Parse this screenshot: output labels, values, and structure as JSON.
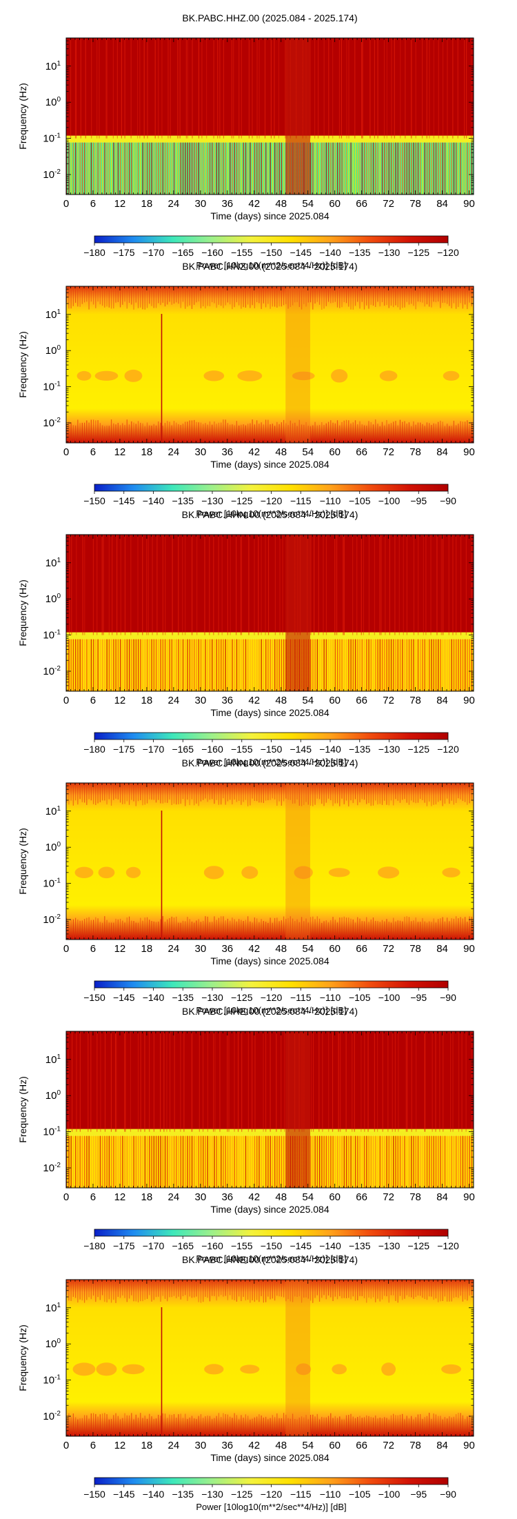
{
  "chart_data": [
    {
      "type": "heatmap",
      "title": "BK.PABC.HHZ.00 (2025.084 - 2025.174)",
      "xlabel": "Time (days) since 2025.084",
      "ylabel": "Frequency (Hz)",
      "xlim": [
        0,
        91
      ],
      "ylim": [
        0.0028,
        60
      ],
      "y_scale": "log",
      "x_ticks": [
        0,
        6,
        12,
        18,
        24,
        30,
        36,
        42,
        48,
        54,
        60,
        66,
        72,
        78,
        84,
        90
      ],
      "y_ticks": [
        "10^-2",
        "10^-1",
        "10^0",
        "10^1"
      ],
      "colorbar": {
        "label": "Power [10log10(m**2/sec**4/Hz)] [dB]",
        "range": [
          -180,
          -120
        ],
        "ticks": [
          -180,
          -175,
          -170,
          -165,
          -160,
          -155,
          -150,
          -145,
          -140,
          -135,
          -130,
          -125,
          -120
        ]
      },
      "pattern": "low"
    },
    {
      "type": "heatmap",
      "title": "BK.PABC.HNZ.00 (2025.084 - 2025.174)",
      "xlabel": "Time (days) since 2025.084",
      "ylabel": "Frequency (Hz)",
      "xlim": [
        0,
        91
      ],
      "ylim": [
        0.0028,
        60
      ],
      "y_scale": "log",
      "x_ticks": [
        0,
        6,
        12,
        18,
        24,
        30,
        36,
        42,
        48,
        54,
        60,
        66,
        72,
        78,
        84,
        90
      ],
      "y_ticks": [
        "10^-2",
        "10^-1",
        "10^0",
        "10^1"
      ],
      "colorbar": {
        "label": "Power [10log10(m**2/sec**4/Hz)] [dB]",
        "range": [
          -150,
          -90
        ],
        "ticks": [
          -150,
          -145,
          -140,
          -135,
          -130,
          -125,
          -120,
          -115,
          -110,
          -105,
          -100,
          -95,
          -90
        ]
      },
      "pattern": "accel"
    },
    {
      "type": "heatmap",
      "title": "BK.PABC.HHN.00 (2025.084 - 2025.174)",
      "xlabel": "Time (days) since 2025.084",
      "ylabel": "Frequency (Hz)",
      "xlim": [
        0,
        91
      ],
      "ylim": [
        0.0028,
        60
      ],
      "y_scale": "log",
      "x_ticks": [
        0,
        6,
        12,
        18,
        24,
        30,
        36,
        42,
        48,
        54,
        60,
        66,
        72,
        78,
        84,
        90
      ],
      "y_ticks": [
        "10^-2",
        "10^-1",
        "10^0",
        "10^1"
      ],
      "colorbar": {
        "label": "Power [10log10(m**2/sec**4/Hz)] [dB]",
        "range": [
          -180,
          -120
        ],
        "ticks": [
          -180,
          -175,
          -170,
          -165,
          -160,
          -155,
          -150,
          -145,
          -140,
          -135,
          -130,
          -125,
          -120
        ]
      },
      "pattern": "horiz"
    },
    {
      "type": "heatmap",
      "title": "BK.PABC.HNN.00 (2025.084 - 2025.174)",
      "xlabel": "Time (days) since 2025.084",
      "ylabel": "Frequency (Hz)",
      "xlim": [
        0,
        91
      ],
      "ylim": [
        0.0028,
        60
      ],
      "y_scale": "log",
      "x_ticks": [
        0,
        6,
        12,
        18,
        24,
        30,
        36,
        42,
        48,
        54,
        60,
        66,
        72,
        78,
        84,
        90
      ],
      "y_ticks": [
        "10^-2",
        "10^-1",
        "10^0",
        "10^1"
      ],
      "colorbar": {
        "label": "Power [10log10(m**2/sec**4/Hz)] [dB]",
        "range": [
          -150,
          -90
        ],
        "ticks": [
          -150,
          -145,
          -140,
          -135,
          -130,
          -125,
          -120,
          -115,
          -110,
          -105,
          -100,
          -95,
          -90
        ]
      },
      "pattern": "accel"
    },
    {
      "type": "heatmap",
      "title": "BK.PABC.HHE.00 (2025.084 - 2025.174)",
      "xlabel": "Time (days) since 2025.084",
      "ylabel": "Frequency (Hz)",
      "xlim": [
        0,
        91
      ],
      "ylim": [
        0.0028,
        60
      ],
      "y_scale": "log",
      "x_ticks": [
        0,
        6,
        12,
        18,
        24,
        30,
        36,
        42,
        48,
        54,
        60,
        66,
        72,
        78,
        84,
        90
      ],
      "y_ticks": [
        "10^-2",
        "10^-1",
        "10^0",
        "10^1"
      ],
      "colorbar": {
        "label": "Power [10log10(m**2/sec**4/Hz)] [dB]",
        "range": [
          -180,
          -120
        ],
        "ticks": [
          -180,
          -175,
          -170,
          -165,
          -160,
          -155,
          -150,
          -145,
          -140,
          -135,
          -130,
          -125,
          -120
        ]
      },
      "pattern": "horiz"
    },
    {
      "type": "heatmap",
      "title": "BK.PABC.HNE.00 (2025.084 - 2025.174)",
      "xlabel": "Time (days) since 2025.084",
      "ylabel": "Frequency (Hz)",
      "xlim": [
        0,
        91
      ],
      "ylim": [
        0.0028,
        60
      ],
      "y_scale": "log",
      "x_ticks": [
        0,
        6,
        12,
        18,
        24,
        30,
        36,
        42,
        48,
        54,
        60,
        66,
        72,
        78,
        84,
        90
      ],
      "y_ticks": [
        "10^-2",
        "10^-1",
        "10^0",
        "10^1"
      ],
      "colorbar": {
        "label": "Power [10log10(m**2/sec**4/Hz)] [dB]",
        "range": [
          -150,
          -90
        ],
        "ticks": [
          -150,
          -145,
          -140,
          -135,
          -130,
          -125,
          -120,
          -115,
          -110,
          -105,
          -100,
          -95,
          -90
        ]
      },
      "pattern": "accel"
    }
  ],
  "colormap": [
    "#0a1fc8",
    "#1f8cf0",
    "#3ee8ba",
    "#9ef08a",
    "#f4f23c",
    "#ffe000",
    "#ffa21a",
    "#f14d0e",
    "#d21305",
    "#b00000"
  ]
}
